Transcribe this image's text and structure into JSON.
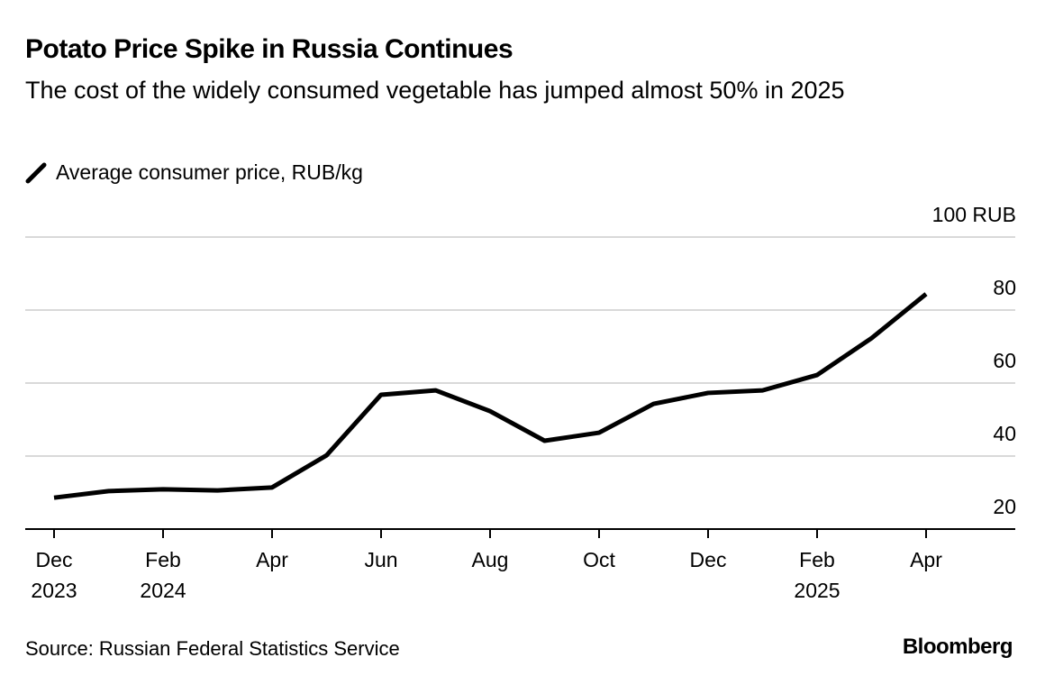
{
  "chart_data": {
    "type": "line",
    "title": "Potato Price Spike in Russia Continues",
    "subtitle": "The cost of the widely consumed vegetable has jumped almost 50% in 2025",
    "source": "Source: Russian Federal Statistics Service",
    "brand": "Bloomberg",
    "categories": [
      "Dec 2023",
      null,
      "Feb 2024",
      null,
      "Apr",
      null,
      "Jun",
      null,
      "Aug",
      null,
      "Oct",
      null,
      "Dec",
      null,
      "Feb 2025",
      null,
      "Apr"
    ],
    "series": [
      {
        "name": "Average consumer price, RUB/kg",
        "color": "#000000",
        "values": [
          28.6,
          30.4,
          30.9,
          30.6,
          31.4,
          40.2,
          56.8,
          58.0,
          52.3,
          44.2,
          46.4,
          54.3,
          57.3,
          58.0,
          62.2,
          72.3,
          84.4
        ]
      }
    ],
    "ylim": [
      20,
      100
    ],
    "yticks": [
      20,
      40,
      60,
      80,
      {
        "value": 100,
        "label": "100 RUB"
      }
    ],
    "grid": true
  }
}
